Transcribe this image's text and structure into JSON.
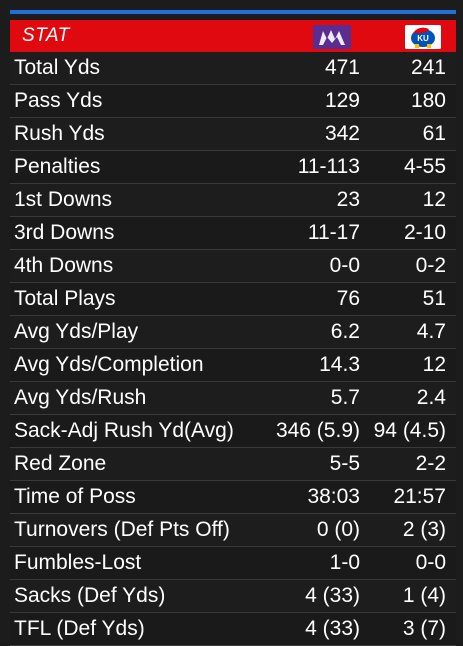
{
  "header": {
    "label": "STAT",
    "team_a_logo": "kstate-wildcat-logo",
    "team_b_logo": "kansas-jayhawk-logo"
  },
  "colors": {
    "header_red": "#e0090f",
    "top_rule_blue": "#1f6fd6",
    "kstate_purple": "#5a2d91"
  },
  "rows": [
    {
      "name": "Total Yds",
      "a": "471",
      "b": "241"
    },
    {
      "name": "Pass Yds",
      "a": "129",
      "b": "180"
    },
    {
      "name": "Rush Yds",
      "a": "342",
      "b": "61"
    },
    {
      "name": "Penalties",
      "a": "11-113",
      "b": "4-55"
    },
    {
      "name": "1st Downs",
      "a": "23",
      "b": "12"
    },
    {
      "name": "3rd Downs",
      "a": "11-17",
      "b": "2-10"
    },
    {
      "name": "4th Downs",
      "a": "0-0",
      "b": "0-2"
    },
    {
      "name": "Total Plays",
      "a": "76",
      "b": "51"
    },
    {
      "name": "Avg Yds/Play",
      "a": "6.2",
      "b": "4.7"
    },
    {
      "name": "Avg Yds/Completion",
      "a": "14.3",
      "b": "12"
    },
    {
      "name": "Avg Yds/Rush",
      "a": "5.7",
      "b": "2.4"
    },
    {
      "name": "Sack-Adj Rush Yd(Avg)",
      "a": "346 (5.9)",
      "b": "94 (4.5)"
    },
    {
      "name": "Red Zone",
      "a": "5-5",
      "b": "2-2"
    },
    {
      "name": "Time of Poss",
      "a": "38:03",
      "b": "21:57"
    },
    {
      "name": "Turnovers (Def Pts Off)",
      "a": "0 (0)",
      "b": "2 (3)"
    },
    {
      "name": "Fumbles-Lost",
      "a": "1-0",
      "b": "0-0"
    },
    {
      "name": "Sacks (Def Yds)",
      "a": "4 (33)",
      "b": "1 (4)"
    },
    {
      "name": "TFL (Def Yds)",
      "a": "4 (33)",
      "b": "3 (7)"
    }
  ]
}
